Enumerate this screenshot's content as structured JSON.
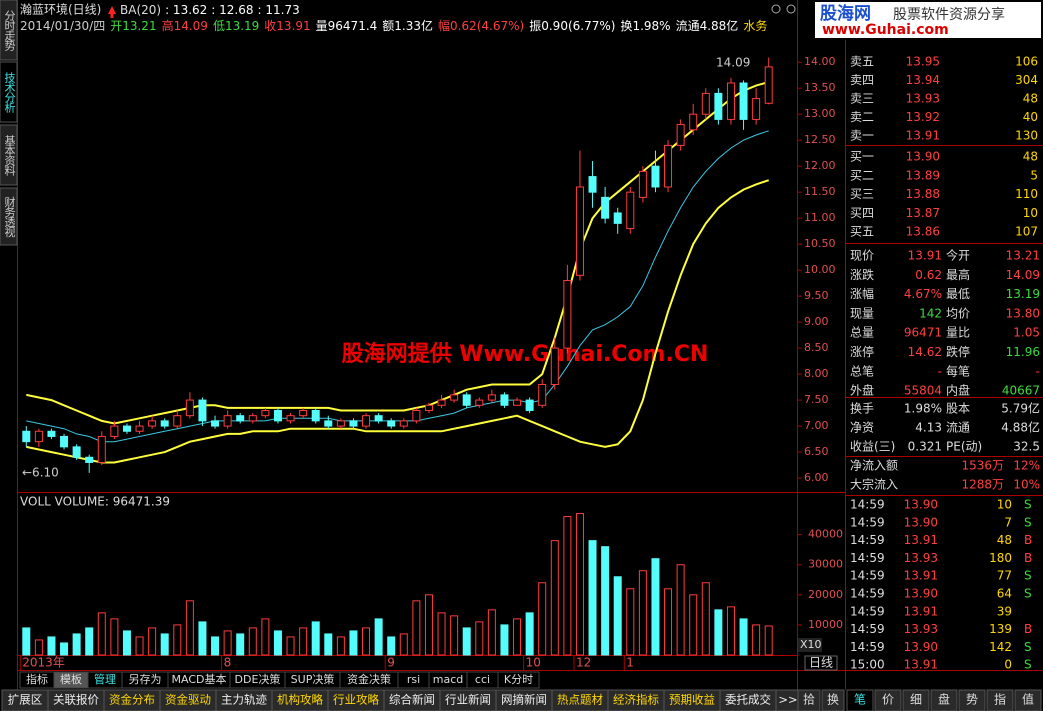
{
  "header": {
    "stock": "瀚蓝环境(日线)",
    "indicator": "BA(20)",
    "ba_values": [
      ": 13.62",
      ": 12.68",
      ": 11.73"
    ],
    "info": [
      "2014/01/30/四",
      "开13.21",
      "高14.09",
      "低13.19",
      "收13.91",
      "量96471.4",
      "额1.33亿",
      "幅0.62(4.67%)",
      "振0.90(6.77%)",
      "换1.98%",
      "流通4.88亿",
      "水务"
    ]
  },
  "side_tabs": [
    "分时走势",
    "技术分析",
    "基本资料",
    "财务透视"
  ],
  "watermark": "股海网提供 Www.Guhai.Com.CN",
  "logo": {
    "name": "股海网",
    "slogan": "股票软件资源分享",
    "url": "www.Guhai.com"
  },
  "chart_data": [
    {
      "type": "candlestick",
      "annotations": [
        "14.09",
        "←6.10"
      ],
      "categories": [
        "2013年",
        null,
        null,
        null,
        null,
        null,
        null,
        null,
        null,
        null,
        null,
        null,
        null,
        null,
        null,
        null,
        "8",
        null,
        null,
        null,
        null,
        null,
        null,
        null,
        null,
        null,
        null,
        null,
        null,
        "9",
        null,
        null,
        null,
        null,
        null,
        null,
        null,
        null,
        null,
        null,
        "10",
        null,
        null,
        null,
        "12",
        null,
        null,
        null,
        "1",
        null,
        null,
        null,
        null,
        null,
        null,
        null,
        null,
        null,
        null,
        null
      ],
      "open": [
        6.9,
        6.7,
        6.9,
        6.8,
        6.6,
        6.4,
        6.3,
        6.8,
        7.0,
        6.9,
        7.0,
        7.1,
        7.0,
        7.2,
        7.5,
        7.1,
        7.0,
        7.2,
        7.1,
        7.2,
        7.3,
        7.1,
        7.2,
        7.3,
        7.1,
        7.0,
        7.1,
        7.0,
        7.2,
        7.1,
        7.0,
        7.1,
        7.3,
        7.4,
        7.5,
        7.6,
        7.4,
        7.5,
        7.6,
        7.4,
        7.5,
        7.4,
        7.8,
        8.5,
        9.9,
        11.8,
        11.4,
        11.1,
        10.8,
        11.4,
        12.0,
        11.6,
        12.4,
        12.7,
        13.0,
        13.4,
        12.9,
        13.6,
        12.9,
        13.21
      ],
      "high": [
        7.0,
        6.95,
        6.95,
        6.85,
        6.65,
        6.45,
        6.9,
        7.1,
        7.05,
        7.1,
        7.2,
        7.15,
        7.3,
        7.65,
        7.55,
        7.2,
        7.3,
        7.25,
        7.25,
        7.35,
        7.35,
        7.25,
        7.35,
        7.35,
        7.2,
        7.15,
        7.15,
        7.25,
        7.25,
        7.15,
        7.15,
        7.35,
        7.45,
        7.6,
        7.7,
        7.65,
        7.55,
        7.7,
        7.65,
        7.55,
        7.55,
        7.9,
        8.7,
        10.1,
        12.3,
        12.1,
        11.6,
        11.2,
        11.6,
        12.0,
        12.3,
        12.5,
        12.9,
        13.2,
        13.5,
        13.5,
        13.7,
        13.65,
        13.5,
        14.09
      ],
      "low": [
        6.6,
        6.6,
        6.75,
        6.55,
        6.35,
        6.1,
        6.25,
        6.75,
        6.85,
        6.85,
        6.95,
        6.95,
        6.95,
        7.15,
        7.0,
        6.95,
        6.95,
        7.05,
        7.05,
        7.15,
        7.05,
        7.05,
        7.15,
        7.05,
        6.95,
        6.95,
        6.95,
        6.95,
        7.05,
        6.95,
        6.95,
        7.05,
        7.25,
        7.35,
        7.45,
        7.35,
        7.35,
        7.45,
        7.35,
        7.4,
        7.25,
        7.35,
        7.7,
        8.4,
        9.8,
        11.2,
        10.9,
        10.7,
        10.7,
        11.3,
        11.5,
        11.5,
        12.3,
        12.6,
        12.9,
        12.8,
        12.8,
        12.7,
        12.8,
        13.19
      ],
      "close": [
        6.7,
        6.9,
        6.8,
        6.6,
        6.4,
        6.3,
        6.8,
        7.0,
        6.9,
        7.0,
        7.1,
        7.0,
        7.2,
        7.5,
        7.1,
        7.0,
        7.2,
        7.1,
        7.2,
        7.3,
        7.1,
        7.2,
        7.3,
        7.1,
        7.0,
        7.1,
        7.0,
        7.2,
        7.1,
        7.0,
        7.1,
        7.3,
        7.4,
        7.5,
        7.6,
        7.4,
        7.5,
        7.6,
        7.4,
        7.5,
        7.3,
        7.8,
        8.5,
        9.8,
        11.6,
        11.5,
        11.0,
        10.9,
        11.5,
        11.9,
        11.6,
        12.4,
        12.8,
        13.0,
        13.4,
        12.9,
        13.6,
        12.9,
        13.3,
        13.91
      ],
      "up_color": "#ff3c3c",
      "down_color": "#54fcfc",
      "series": [
        {
          "color": "#ffff3c",
          "values": [
            7.6,
            7.55,
            7.5,
            7.4,
            7.3,
            7.2,
            7.1,
            7.05,
            7.1,
            7.15,
            7.2,
            7.25,
            7.3,
            7.35,
            7.4,
            7.4,
            7.35,
            7.35,
            7.35,
            7.35,
            7.35,
            7.35,
            7.35,
            7.35,
            7.35,
            7.3,
            7.3,
            7.3,
            7.3,
            7.3,
            7.3,
            7.35,
            7.4,
            7.5,
            7.6,
            7.7,
            7.75,
            7.8,
            7.8,
            7.8,
            7.8,
            8.0,
            8.7,
            9.5,
            10.4,
            11.0,
            11.3,
            11.5,
            11.7,
            11.9,
            12.1,
            12.3,
            12.5,
            12.7,
            12.9,
            13.1,
            13.3,
            13.45,
            13.55,
            13.62
          ]
        },
        {
          "color": "#3cc8e6",
          "values": [
            7.1,
            7.05,
            7.0,
            6.95,
            6.85,
            6.8,
            6.7,
            6.7,
            6.75,
            6.8,
            6.85,
            6.9,
            6.95,
            7.0,
            7.05,
            7.1,
            7.1,
            7.1,
            7.1,
            7.1,
            7.15,
            7.15,
            7.15,
            7.15,
            7.15,
            7.1,
            7.1,
            7.1,
            7.1,
            7.1,
            7.1,
            7.1,
            7.15,
            7.2,
            7.25,
            7.35,
            7.4,
            7.45,
            7.5,
            7.5,
            7.45,
            7.5,
            7.8,
            8.15,
            8.55,
            8.85,
            8.95,
            9.1,
            9.3,
            9.7,
            10.25,
            10.75,
            11.2,
            11.6,
            11.9,
            12.15,
            12.35,
            12.5,
            12.6,
            12.68
          ]
        },
        {
          "color": "#ffff3c",
          "values": [
            6.6,
            6.55,
            6.5,
            6.45,
            6.4,
            6.35,
            6.3,
            6.3,
            6.35,
            6.4,
            6.45,
            6.5,
            6.6,
            6.7,
            6.75,
            6.8,
            6.85,
            6.85,
            6.9,
            6.9,
            6.9,
            6.95,
            6.95,
            6.95,
            6.95,
            6.95,
            6.95,
            6.9,
            6.9,
            6.9,
            6.9,
            6.9,
            6.9,
            6.9,
            6.95,
            7.0,
            7.05,
            7.1,
            7.15,
            7.2,
            7.1,
            7.0,
            6.9,
            6.8,
            6.7,
            6.65,
            6.6,
            6.65,
            6.9,
            7.5,
            8.4,
            9.2,
            9.9,
            10.5,
            10.9,
            11.2,
            11.4,
            11.55,
            11.65,
            11.73
          ]
        }
      ],
      "ylim": [
        5.77,
        14.62
      ],
      "yticks": [
        {
          "value": 6,
          "label": "6.00"
        },
        {
          "value": 6.5,
          "label": "6.50"
        },
        {
          "value": 7,
          "label": "7.00"
        },
        {
          "value": 7.5,
          "label": "7.50"
        },
        {
          "value": 8,
          "label": "8.00"
        },
        {
          "value": 8.5,
          "label": "8.50"
        },
        {
          "value": 9,
          "label": "9.00"
        },
        {
          "value": 9.5,
          "label": "9.50"
        },
        {
          "value": 10,
          "label": "10.00"
        },
        {
          "value": 10.5,
          "label": "10.50"
        },
        {
          "value": 11,
          "label": "11.00"
        },
        {
          "value": 11.5,
          "label": "11.50"
        },
        {
          "value": 12,
          "label": "12.00"
        },
        {
          "value": 12.5,
          "label": "12.50"
        },
        {
          "value": 13,
          "label": "13.00"
        },
        {
          "value": 13.5,
          "label": "13.50"
        },
        {
          "value": 14,
          "label": "14.00"
        }
      ]
    },
    {
      "type": "bar",
      "title": "VOLL VOLUME: 96471.39",
      "unit_label": "X10",
      "period": "日线",
      "values": [
        9000,
        5000,
        6000,
        4000,
        7000,
        9000,
        14000,
        12000,
        8000,
        6000,
        9000,
        7000,
        10000,
        18000,
        11000,
        6000,
        8000,
        7000,
        9000,
        12000,
        8000,
        6000,
        9000,
        11000,
        7000,
        6000,
        8000,
        9000,
        12000,
        6000,
        7000,
        18000,
        20000,
        14000,
        13000,
        9000,
        11000,
        15000,
        10000,
        12000,
        14000,
        24000,
        38000,
        46000,
        47000,
        38000,
        36000,
        26000,
        22000,
        28000,
        32000,
        22000,
        30000,
        20000,
        24000,
        15000,
        16000,
        12000,
        10000,
        9647.14
      ],
      "ylim": [
        0,
        52500
      ],
      "yticks": [
        10000,
        20000,
        30000,
        40000
      ]
    }
  ],
  "quote": {
    "sell": [
      [
        "卖五",
        "13.95",
        "106"
      ],
      [
        "卖四",
        "13.94",
        "304"
      ],
      [
        "卖三",
        "13.93",
        "48"
      ],
      [
        "卖二",
        "13.92",
        "40"
      ],
      [
        "卖一",
        "13.91",
        "130"
      ]
    ],
    "buy": [
      [
        "买一",
        "13.90",
        "48"
      ],
      [
        "买二",
        "13.89",
        "5"
      ],
      [
        "买三",
        "13.88",
        "110"
      ],
      [
        "买四",
        "13.87",
        "10"
      ],
      [
        "买五",
        "13.86",
        "107"
      ]
    ],
    "stats": [
      [
        "现价",
        "13.91",
        "今开",
        "13.21"
      ],
      [
        "涨跌",
        "0.62",
        "最高",
        "14.09"
      ],
      [
        "涨幅",
        "4.67%",
        "最低",
        "13.19"
      ],
      [
        "现量",
        "142",
        "均价",
        "13.80"
      ],
      [
        "总量",
        "96471",
        "量比",
        "1.05"
      ],
      [
        "涨停",
        "14.62",
        "跌停",
        "11.96"
      ],
      [
        "总笔",
        "-",
        "每笔",
        "-"
      ],
      [
        "外盘",
        "55804",
        "内盘",
        "40667"
      ]
    ],
    "stats2": [
      [
        "换手",
        "1.98%",
        "股本",
        "5.79亿"
      ],
      [
        "净资",
        "4.13",
        "流通",
        "4.88亿"
      ],
      [
        "收益(三)",
        "0.321",
        "PE(动)",
        "32.5"
      ]
    ],
    "flow": [
      [
        "净流入额",
        "1536万",
        "12%"
      ],
      [
        "大宗流入",
        "1288万",
        "10%"
      ]
    ],
    "ticks": [
      [
        "14:59",
        "13.90",
        "10",
        "S"
      ],
      [
        "14:59",
        "13.90",
        "7",
        "S"
      ],
      [
        "14:59",
        "13.91",
        "48",
        "B"
      ],
      [
        "14:59",
        "13.93",
        "180",
        "B"
      ],
      [
        "14:59",
        "13.91",
        "77",
        "S"
      ],
      [
        "14:59",
        "13.90",
        "64",
        "S"
      ],
      [
        "14:59",
        "13.91",
        "39"
      ],
      [
        "14:59",
        "13.93",
        "139",
        "B"
      ],
      [
        "14:59",
        "13.90",
        "142",
        "S"
      ],
      [
        "15:00",
        "13.91",
        "0",
        "S"
      ]
    ]
  },
  "tabs_top": [
    "指标",
    "模板",
    "管理",
    "另存为",
    "MACD基本",
    "DDE决策",
    "SUP决策",
    "资金决策",
    "rsi",
    "macd",
    "cci",
    "K分时"
  ],
  "tabs_bottom": [
    "扩展区",
    "关联报价",
    "资金分布",
    "资金驱动",
    "主力轨迹",
    "机构攻略",
    "行业攻略",
    "综合新闻",
    "行业新闻",
    "网摘新闻",
    "热点题材",
    "经济指标",
    "预期收益",
    "委托成交",
    ">>"
  ],
  "right_tabs_top": [
    "拾",
    "换"
  ],
  "right_tabs_bottom": [
    "笔",
    "价",
    "细",
    "盘",
    "势",
    "指",
    "值"
  ]
}
